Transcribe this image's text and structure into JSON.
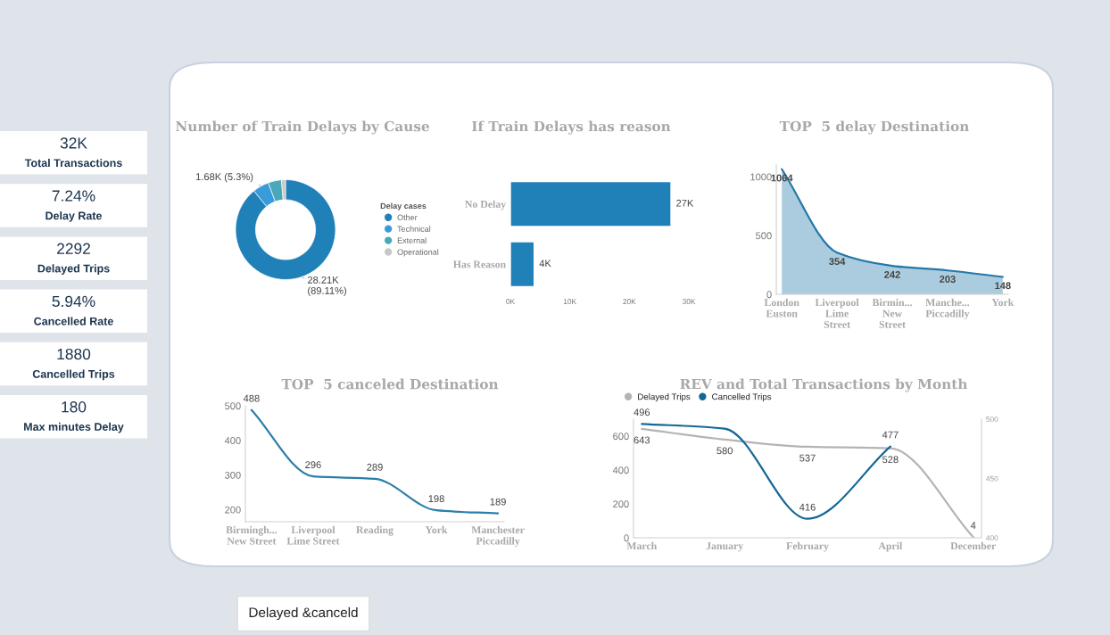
{
  "chart_data": [
    {
      "type": "other",
      "annotations": [
        "32K",
        "Total Transactions",
        "7.24%",
        "Delay Rate",
        "2292",
        "Delayed Trips",
        "5.94%",
        "Cancelled Rate",
        "1880",
        "Cancelled Trips",
        "180",
        "Max minutes Delay",
        "Delayed &canceld"
      ]
    },
    {
      "type": "donut",
      "title": "Number of Train Delays by Cause",
      "legend_title": "Delay cases",
      "legend": "right",
      "categories": [
        "Other",
        "Technical",
        "External",
        "Operational"
      ],
      "values": [
        89.11,
        5.3,
        4.3,
        1.29
      ],
      "colors": [
        "#2080b8",
        "#3a9bdc",
        "#4aa8b8",
        "#c8c8c8"
      ],
      "value_labels": [
        "28.21K\n(89.11%)",
        "1.68K (5.3%)",
        null,
        null
      ]
    },
    {
      "type": "bar",
      "orientation": "horizontal",
      "title": "If Train Delays has reason",
      "categories": [
        "No Delay",
        "Has Reason"
      ],
      "values": [
        27000,
        4000
      ],
      "color": "#2080b8",
      "value_labels": [
        "27K",
        "4K"
      ],
      "xlim": [
        0,
        30000
      ],
      "xticks": [
        {
          "value": 0,
          "label": "0K"
        },
        {
          "value": 10000,
          "label": "10K"
        },
        {
          "value": 20000,
          "label": "20K"
        },
        {
          "value": 30000,
          "label": "30K"
        }
      ]
    },
    {
      "type": "area",
      "title": "TOP  5 delay Destination",
      "categories": [
        "London\nEuston",
        "Liverpool\nLime\nStreet",
        "Birmin...\nNew\nStreet",
        "Manche...\nPiccadilly",
        "York"
      ],
      "series": [
        {
          "color": "#2378a8",
          "values": [
            1064,
            354,
            242,
            203,
            148
          ]
        }
      ],
      "data_labels": true,
      "ylim": [
        0,
        1100
      ],
      "yticks": [
        0,
        500,
        1000
      ]
    },
    {
      "type": "line",
      "title": "TOP  5 canceled Destination",
      "categories": [
        "Birmingh...\nNew Street",
        "Liverpool\nLime Street",
        "Reading",
        "York",
        "Manchester\nPiccadilly"
      ],
      "series": [
        {
          "color": "#2b7fa8",
          "values": [
            488,
            296,
            289,
            198,
            189
          ]
        }
      ],
      "data_labels": true,
      "ylim": [
        165,
        500
      ],
      "yticks": [
        200,
        300,
        400,
        500
      ]
    },
    {
      "type": "line",
      "title": "REV and Total Transactions by Month",
      "legend": "top left",
      "categories": [
        "March",
        "January",
        "February",
        "April",
        "December"
      ],
      "ylim": [
        0,
        700
      ],
      "yticks": [
        0,
        200,
        400,
        600
      ],
      "y2lim": [
        400,
        500
      ],
      "y2ticks": [
        400,
        450,
        500
      ],
      "series": [
        {
          "name": "Delayed Trips",
          "color": "#b4b4b4",
          "values": [
            643,
            580,
            537,
            528,
            4
          ],
          "value_labels": [
            "643",
            "580",
            "537",
            "528",
            "4"
          ]
        },
        {
          "name": "Cancelled Trips",
          "color": "#136896",
          "axis": "y2",
          "values": [
            496,
            492,
            416,
            477,
            null
          ],
          "value_labels": [
            "496",
            null,
            "416",
            "477",
            null
          ]
        }
      ]
    }
  ]
}
